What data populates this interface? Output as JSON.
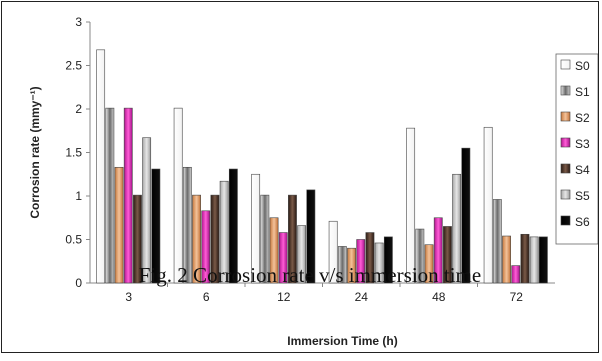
{
  "chart_data": {
    "type": "bar",
    "xlabel": "Immersion Time (h)",
    "ylabel": "Corrosion rate (mmy⁻¹)",
    "ylim": [
      0,
      3
    ],
    "yticks": [
      "0",
      "0.5",
      "1",
      "1.5",
      "2",
      "2.5",
      "3"
    ],
    "categories": [
      "3",
      "6",
      "12",
      "24",
      "48",
      "72"
    ],
    "series": [
      {
        "name": "S0",
        "values": [
          2.68,
          2.01,
          1.25,
          0.71,
          1.78,
          1.79
        ]
      },
      {
        "name": "S1",
        "values": [
          2.01,
          1.33,
          1.01,
          0.42,
          0.62,
          0.96
        ]
      },
      {
        "name": "S2",
        "values": [
          1.33,
          1.01,
          0.75,
          0.4,
          0.44,
          0.54
        ]
      },
      {
        "name": "S3",
        "values": [
          2.01,
          0.83,
          0.58,
          0.5,
          0.75,
          0.2
        ]
      },
      {
        "name": "S4",
        "values": [
          1.01,
          1.01,
          1.01,
          0.58,
          0.65,
          0.56
        ]
      },
      {
        "name": "S5",
        "values": [
          1.67,
          1.17,
          0.66,
          0.46,
          1.25,
          0.53
        ]
      },
      {
        "name": "S6",
        "values": [
          1.31,
          1.31,
          1.07,
          0.53,
          1.55,
          0.53
        ]
      }
    ],
    "legend": "right",
    "grid": false,
    "series_fills": [
      "white",
      "gray-hatch",
      "orange",
      "magenta",
      "dark-brown",
      "light-gray",
      "black"
    ]
  },
  "caption": "Fig. 2 Corrosion rate v/s immersion time"
}
